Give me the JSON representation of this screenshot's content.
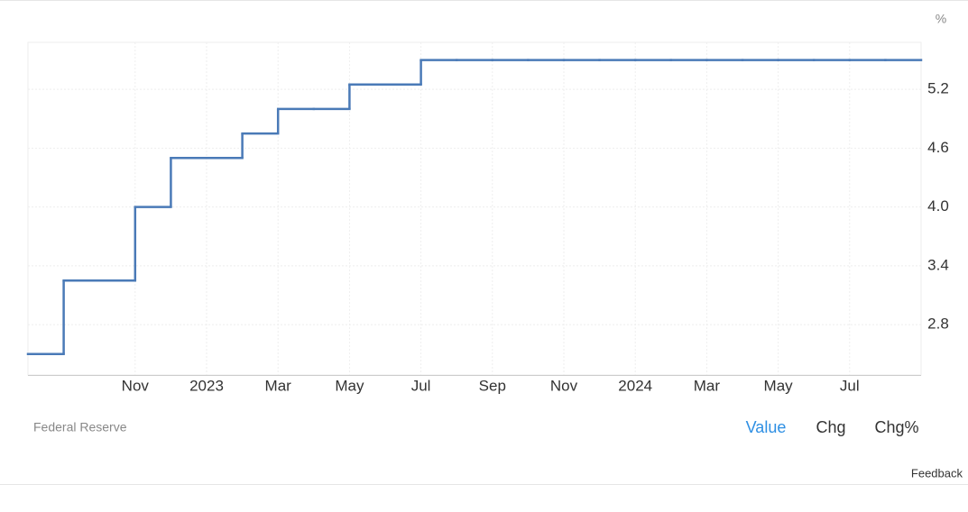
{
  "chart_data": {
    "type": "step",
    "unit": "%",
    "source": "Federal Reserve",
    "categories": [
      null,
      null,
      null,
      "Nov",
      null,
      "2023",
      null,
      "Mar",
      null,
      "May",
      null,
      "Jul",
      null,
      "Sep",
      null,
      "Nov",
      null,
      "2024",
      null,
      "Mar",
      null,
      "May",
      null,
      "Jul",
      null
    ],
    "values": [
      2.5,
      3.25,
      3.25,
      4.0,
      4.5,
      4.5,
      4.75,
      5.0,
      5.0,
      5.25,
      5.25,
      5.5,
      5.5,
      5.5,
      5.5,
      5.5,
      5.5,
      5.5,
      5.5,
      5.5,
      5.5,
      5.5,
      5.5,
      5.5,
      5.5
    ],
    "color": "#4a7ab7",
    "ylim": [
      2.286,
      5.68
    ],
    "yticks": [
      2.8,
      3.4,
      {
        "value": 4,
        "label": "4.0"
      },
      4.6,
      5.2
    ],
    "grid": true,
    "buttons": [
      "Value",
      "Chg",
      "Chg%"
    ],
    "feedback": "Feedback"
  }
}
